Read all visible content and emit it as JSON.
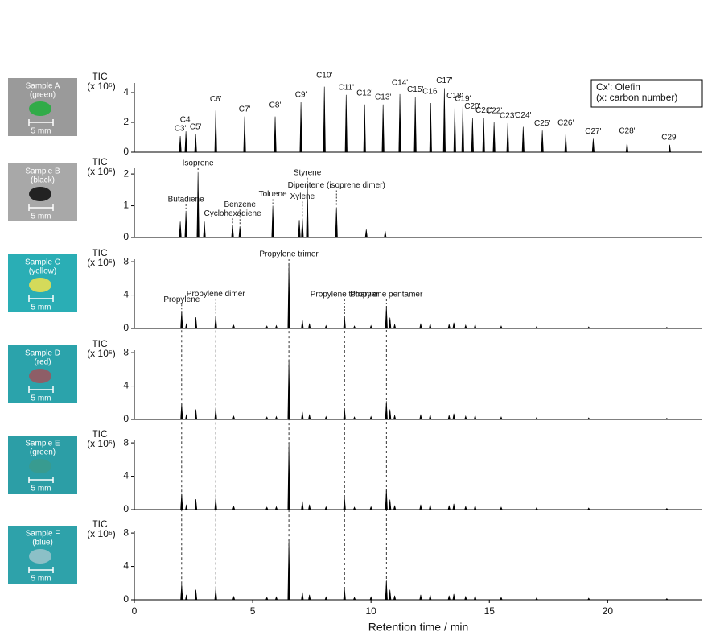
{
  "chart_data": [
    {
      "type": "chromatogram",
      "ylabel": "TIC",
      "yunit": "(x 10⁶)",
      "xlim": [
        0,
        24
      ],
      "ylim": [
        0,
        4.65
      ],
      "yticks": [
        0,
        2,
        4
      ],
      "sample": {
        "name": "Sample A",
        "color": "(green)",
        "scale": "5 mm"
      },
      "note": [
        "Cx': Olefin",
        "(x: carbon number)"
      ],
      "x": [
        1.94,
        2.18,
        2.59,
        3.44,
        4.66,
        5.95,
        7.04,
        8.03,
        8.95,
        9.73,
        10.51,
        11.22,
        11.87,
        12.52,
        13.1,
        13.54,
        13.88,
        14.29,
        14.76,
        15.2,
        15.78,
        16.43,
        17.24,
        18.23,
        19.39,
        20.82,
        22.62
      ],
      "values": [
        1.08,
        1.4,
        1.2,
        2.8,
        2.4,
        2.4,
        3.35,
        4.4,
        3.85,
        3.2,
        3.2,
        3.9,
        3.7,
        3.3,
        4.3,
        3.0,
        3.1,
        2.3,
        2.3,
        2.0,
        1.95,
        1.7,
        1.45,
        1.2,
        0.9,
        0.65,
        0.5
      ],
      "peak_labels": [
        "C3'",
        "C4'",
        "C5'",
        "C6'",
        "C7'",
        "C8'",
        "C9'",
        "C10'",
        "C11'",
        "C12'",
        "C13'",
        "C14'",
        "C15'",
        "C16'",
        "C17'",
        "C18'",
        "C19'",
        "C20'",
        "C21'",
        "C22'",
        "C23'",
        "C24'",
        "C25'",
        "C26'",
        "C27'",
        "C28'",
        "C29'"
      ]
    },
    {
      "type": "chromatogram",
      "ylabel": "TIC",
      "yunit": "(x 10⁶)",
      "xlim": [
        0,
        24
      ],
      "ylim": [
        0,
        2.18
      ],
      "yticks": [
        0,
        1,
        2
      ],
      "sample": {
        "name": "Sample B",
        "color": "(black)",
        "scale": "5 mm"
      },
      "x": [
        1.94,
        2.18,
        2.69,
        2.96,
        4.15,
        4.46,
        5.85,
        6.97,
        7.1,
        7.31,
        8.54,
        9.8,
        10.6
      ],
      "values": [
        0.5,
        0.84,
        2.05,
        0.5,
        0.4,
        0.35,
        1.0,
        0.55,
        0.6,
        1.68,
        0.95,
        0.25,
        0.2
      ],
      "peak_labels": [
        null,
        "Butadiene",
        "Isoprene",
        null,
        "Cyclohexadiene",
        "Benzene",
        "Toluene",
        null,
        "Xylene",
        "Styrene",
        "Dipentene (isoprene dimer)",
        null,
        null
      ]
    },
    {
      "type": "chromatogram",
      "ylabel": "TIC",
      "yunit": "(x 10⁶)",
      "xlim": [
        0,
        24
      ],
      "ylim": [
        0,
        8.3
      ],
      "yticks": [
        0,
        4,
        8
      ],
      "sample": {
        "name": "Sample C",
        "color": "(yellow)",
        "scale": "5 mm"
      },
      "x": [
        2.0,
        2.2,
        2.6,
        3.44,
        4.2,
        5.6,
        6.0,
        6.53,
        7.1,
        7.4,
        8.1,
        8.88,
        9.3,
        10.0,
        10.65,
        10.8,
        11.0,
        12.1,
        12.5,
        13.3,
        13.5,
        14.0,
        14.4,
        15.5,
        17.0,
        19.2,
        22.5
      ],
      "values": [
        2.1,
        0.6,
        1.35,
        1.5,
        0.4,
        0.3,
        0.35,
        7.8,
        1.0,
        0.6,
        0.35,
        1.45,
        0.3,
        0.35,
        2.7,
        1.3,
        0.5,
        0.6,
        0.6,
        0.5,
        0.7,
        0.4,
        0.5,
        0.3,
        0.25,
        0.2,
        0.15
      ],
      "peak_labels": [
        "Propylene",
        null,
        null,
        "Propylene dimer",
        null,
        null,
        null,
        "Propylene trimer",
        null,
        null,
        null,
        "Propylene tetramer",
        null,
        null,
        "Propylene pentamer",
        null,
        null,
        null,
        null,
        null,
        null,
        null,
        null,
        null,
        null,
        null,
        null
      ]
    },
    {
      "type": "chromatogram",
      "ylabel": "TIC",
      "yunit": "(x 10⁶)",
      "xlim": [
        0,
        24
      ],
      "ylim": [
        0,
        8.3
      ],
      "yticks": [
        0,
        4,
        8
      ],
      "sample": {
        "name": "Sample D",
        "color": "(red)",
        "scale": "5 mm"
      },
      "x": [
        2.0,
        2.2,
        2.6,
        3.44,
        4.2,
        5.6,
        6.0,
        6.53,
        7.1,
        7.4,
        8.1,
        8.88,
        9.3,
        10.0,
        10.65,
        10.8,
        11.0,
        12.1,
        12.5,
        13.3,
        13.5,
        14.0,
        14.4,
        15.5,
        17.0,
        19.2,
        22.5
      ],
      "values": [
        1.9,
        0.6,
        1.2,
        1.3,
        0.4,
        0.3,
        0.35,
        7.2,
        0.9,
        0.6,
        0.35,
        1.3,
        0.3,
        0.35,
        2.2,
        1.2,
        0.5,
        0.6,
        0.6,
        0.5,
        0.7,
        0.4,
        0.5,
        0.3,
        0.25,
        0.2,
        0.15
      ]
    },
    {
      "type": "chromatogram",
      "ylabel": "TIC",
      "yunit": "(x 10⁶)",
      "xlim": [
        0,
        24
      ],
      "ylim": [
        0,
        8.3
      ],
      "yticks": [
        0,
        4,
        8
      ],
      "sample": {
        "name": "Sample E",
        "color": "(green)",
        "scale": "5 mm"
      },
      "x": [
        2.0,
        2.2,
        2.6,
        3.44,
        4.2,
        5.6,
        6.0,
        6.53,
        7.1,
        7.4,
        8.1,
        8.88,
        9.3,
        10.0,
        10.65,
        10.8,
        11.0,
        12.1,
        12.5,
        13.3,
        13.5,
        14.0,
        14.4,
        15.5,
        17.0,
        19.2,
        22.5
      ],
      "values": [
        1.95,
        0.6,
        1.25,
        1.4,
        0.4,
        0.3,
        0.35,
        8.0,
        1.0,
        0.6,
        0.35,
        1.4,
        0.3,
        0.35,
        2.5,
        1.2,
        0.5,
        0.6,
        0.6,
        0.5,
        0.7,
        0.4,
        0.5,
        0.3,
        0.25,
        0.2,
        0.15
      ]
    },
    {
      "type": "chromatogram",
      "ylabel": "TIC",
      "yunit": "(x 10⁶)",
      "xlim": [
        0,
        24
      ],
      "ylim": [
        0,
        8.3
      ],
      "yticks": [
        0,
        4,
        8
      ],
      "sample": {
        "name": "Sample F",
        "color": "(blue)",
        "scale": "5 mm"
      },
      "xticks": [
        0,
        5,
        10,
        15,
        20
      ],
      "xlabel": "Retention time / min",
      "x": [
        2.0,
        2.2,
        2.6,
        3.44,
        4.2,
        5.6,
        6.0,
        6.53,
        7.1,
        7.4,
        8.1,
        8.88,
        9.3,
        10.0,
        10.65,
        10.8,
        11.0,
        12.1,
        12.5,
        13.3,
        13.5,
        14.0,
        14.4,
        15.5,
        17.0,
        19.2,
        22.5
      ],
      "values": [
        1.9,
        0.6,
        1.2,
        1.35,
        0.4,
        0.3,
        0.35,
        7.2,
        0.9,
        0.6,
        0.35,
        1.3,
        0.3,
        0.35,
        2.3,
        1.2,
        0.5,
        0.6,
        0.6,
        0.5,
        0.7,
        0.4,
        0.5,
        0.3,
        0.25,
        0.2,
        0.15
      ]
    }
  ]
}
